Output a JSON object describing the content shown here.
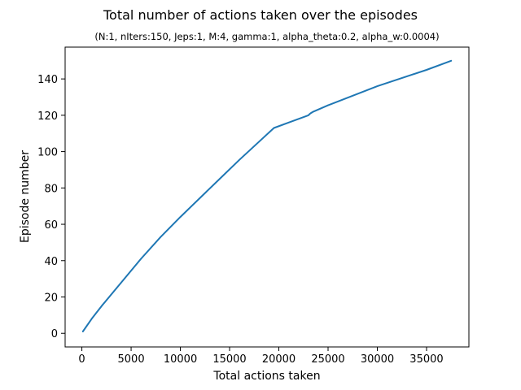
{
  "chart_data": {
    "type": "line",
    "title": "Total number of actions taken over the episodes",
    "subtitle": "(N:1, nIters:150, Jeps:1, M:4, gamma:1, alpha_theta:0.2, alpha_w:0.0004)",
    "xlabel": "Total actions taken",
    "ylabel": "Episode number",
    "xlim": [
      -1700,
      39300
    ],
    "ylim": [
      -7.5,
      157.5
    ],
    "xticks": [
      0,
      5000,
      10000,
      15000,
      20000,
      25000,
      30000,
      35000
    ],
    "yticks": [
      0,
      20,
      40,
      60,
      80,
      100,
      120,
      140
    ],
    "grid": false,
    "series": [
      {
        "color": "#1f77b4",
        "x": [
          100,
          1000,
          2000,
          4000,
          6000,
          8000,
          10000,
          12000,
          14000,
          16000,
          18000,
          19500,
          21000,
          23000,
          23200,
          23500,
          25000,
          30000,
          35000,
          37500
        ],
        "y": [
          1,
          8,
          15,
          28,
          41,
          53,
          64,
          74.5,
          85,
          95.5,
          105.5,
          113,
          116,
          120,
          121,
          122,
          125.5,
          136,
          145,
          150
        ]
      }
    ]
  }
}
